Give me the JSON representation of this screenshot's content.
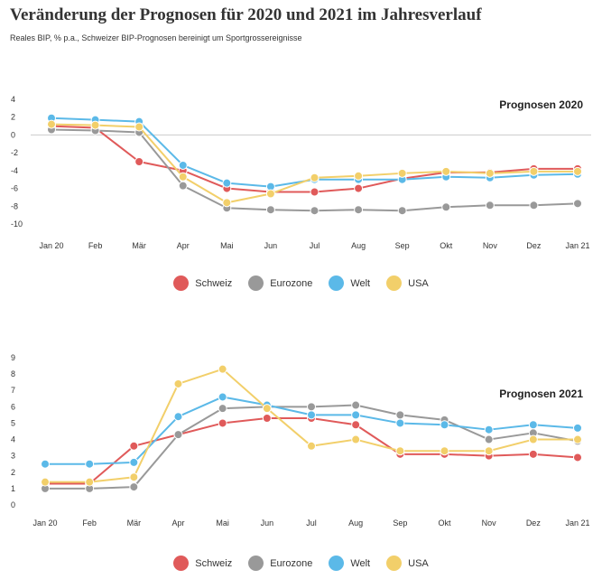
{
  "title": "Veränderung der Prognosen für 2020 und 2021 im Jahresverlauf",
  "subtitle": "Reales BIP, % p.a., Schweizer BIP-Prognosen bereinigt um Sportgrossereignisse",
  "colors": {
    "Schweiz": "#e05a5a",
    "Eurozone": "#999999",
    "Welt": "#5bb9e8",
    "USA": "#f2cf6a"
  },
  "legend": [
    "Schweiz",
    "Eurozone",
    "Welt",
    "USA"
  ],
  "chart_data": [
    {
      "type": "line",
      "panel_label": "Prognosen 2020",
      "categories": [
        "Jan 20",
        "Feb",
        "Mär",
        "Apr",
        "Mai",
        "Jun",
        "Jul",
        "Aug",
        "Sep",
        "Okt",
        "Nov",
        "Dez",
        "Jan 21"
      ],
      "ylim": [
        -10,
        4
      ],
      "yticks": [
        4,
        2,
        0,
        -2,
        -4,
        -6,
        -8,
        -10
      ],
      "ytick_labels": [
        "4",
        "2",
        "0",
        "-2",
        "-4",
        "-6",
        "-8",
        "-10"
      ],
      "series": [
        {
          "name": "Schweiz",
          "values": [
            1.0,
            0.8,
            -3.0,
            -4.0,
            -6.0,
            -6.4,
            -6.4,
            -6.0,
            -4.9,
            -4.2,
            -4.2,
            -3.8,
            -3.8
          ]
        },
        {
          "name": "Eurozone",
          "values": [
            0.6,
            0.5,
            0.3,
            -5.7,
            -8.2,
            -8.4,
            -8.5,
            -8.4,
            -8.5,
            -8.1,
            -7.9,
            -7.9,
            -7.7
          ]
        },
        {
          "name": "Welt",
          "values": [
            1.9,
            1.7,
            1.5,
            -3.4,
            -5.4,
            -5.8,
            -5.0,
            -5.0,
            -5.0,
            -4.7,
            -4.8,
            -4.5,
            -4.4
          ]
        },
        {
          "name": "USA",
          "values": [
            1.2,
            1.1,
            0.9,
            -4.7,
            -7.6,
            -6.6,
            -4.8,
            -4.6,
            -4.3,
            -4.1,
            -4.3,
            -4.1,
            -4.1
          ]
        }
      ]
    },
    {
      "type": "line",
      "panel_label": "Prognosen 2021",
      "categories": [
        "Jan 20",
        "Feb",
        "Mär",
        "Apr",
        "Mai",
        "Jun",
        "Jul",
        "Aug",
        "Sep",
        "Okt",
        "Nov",
        "Dez",
        "Jan 21"
      ],
      "ylim": [
        0,
        9
      ],
      "yticks": [
        9,
        8,
        7,
        6,
        5,
        4,
        3,
        2,
        1,
        0
      ],
      "ytick_labels": [
        "9",
        "8",
        "7",
        "6",
        "5",
        "4",
        "3",
        "2",
        "1",
        "0"
      ],
      "series": [
        {
          "name": "Schweiz",
          "values": [
            1.3,
            1.3,
            3.6,
            4.3,
            5.0,
            5.3,
            5.3,
            4.9,
            3.1,
            3.1,
            3.0,
            3.1,
            2.9
          ]
        },
        {
          "name": "Eurozone",
          "values": [
            1.0,
            1.0,
            1.1,
            4.3,
            5.9,
            6.0,
            6.0,
            6.1,
            5.5,
            5.2,
            4.0,
            4.4,
            3.9
          ]
        },
        {
          "name": "Welt",
          "values": [
            2.5,
            2.5,
            2.6,
            5.4,
            6.6,
            6.1,
            5.5,
            5.5,
            5.0,
            4.9,
            4.6,
            4.9,
            4.7
          ]
        },
        {
          "name": "USA",
          "values": [
            1.4,
            1.4,
            1.7,
            7.4,
            8.3,
            5.9,
            3.6,
            4.0,
            3.3,
            3.3,
            3.3,
            4.0,
            4.0
          ]
        }
      ]
    }
  ]
}
